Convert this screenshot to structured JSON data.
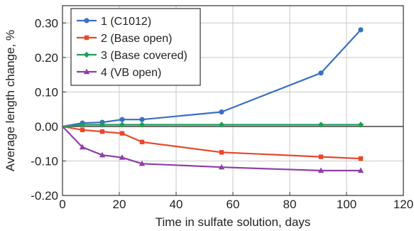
{
  "chart_data": {
    "type": "line",
    "xlabel": "Time in sulfate solution, days",
    "ylabel": "Average length change, %",
    "xlim": [
      0,
      120
    ],
    "ylim": [
      -0.2,
      0.35
    ],
    "xticks": [
      0,
      20,
      40,
      60,
      80,
      100,
      120
    ],
    "xtick_labels": [
      "0",
      "20",
      "40",
      "60",
      "80",
      "100",
      "120"
    ],
    "yticks": [
      -0.2,
      -0.1,
      0.0,
      0.1,
      0.2,
      0.3
    ],
    "ytick_labels": [
      "-0.20",
      "-0.10",
      "0.00",
      "0.10",
      "0.20",
      "0.30"
    ],
    "grid": true,
    "zero_line": true,
    "legend_position": "top-left",
    "series": [
      {
        "name": "1 (C1012)",
        "color": "#3a6fc4",
        "marker": "circle",
        "x": [
          0,
          7,
          14,
          21,
          28,
          56,
          91,
          105
        ],
        "y": [
          0.0,
          0.01,
          0.012,
          0.02,
          0.02,
          0.042,
          0.155,
          0.28
        ]
      },
      {
        "name": "2 (Base open)",
        "color": "#e8482c",
        "marker": "square",
        "x": [
          0,
          7,
          14,
          21,
          28,
          56,
          91,
          105
        ],
        "y": [
          0.0,
          -0.01,
          -0.015,
          -0.02,
          -0.045,
          -0.075,
          -0.088,
          -0.093
        ]
      },
      {
        "name": "3 (Base covered)",
        "color": "#1f9e5a",
        "marker": "diamond",
        "x": [
          0,
          7,
          14,
          21,
          28,
          56,
          91,
          105
        ],
        "y": [
          0.0,
          0.005,
          0.005,
          0.005,
          0.005,
          0.005,
          0.005,
          0.005
        ]
      },
      {
        "name": "4 (VB open)",
        "color": "#8e3fa6",
        "marker": "triangle",
        "x": [
          0,
          7,
          14,
          21,
          28,
          56,
          91,
          105
        ],
        "y": [
          0.0,
          -0.06,
          -0.083,
          -0.09,
          -0.108,
          -0.118,
          -0.128,
          -0.128
        ]
      }
    ]
  }
}
